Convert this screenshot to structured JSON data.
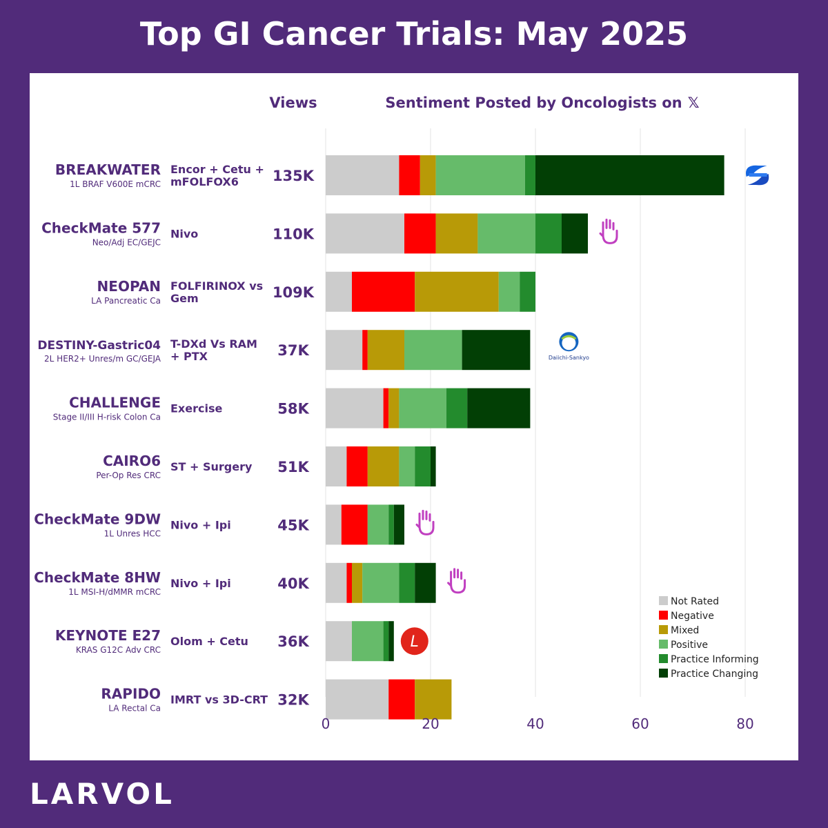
{
  "title": "Top GI Cancer Trials: May 2025",
  "brand": "LARVOL",
  "colors": {
    "background": "#512b7a",
    "text_accent": "#512b7a",
    "Not Rated": "#cccccc",
    "Negative": "#ff0000",
    "Mixed": "#b89a07",
    "Positive": "#66bb6a",
    "Practice Informing": "#238b2d",
    "Practice Changing": "#023f05"
  },
  "headers": {
    "views": "Views",
    "sentiment": "Sentiment Posted by Oncologists on",
    "platform_glyph": "𝕏"
  },
  "chart_data": {
    "type": "bar",
    "orientation": "horizontal",
    "stacked": true,
    "xlim": [
      0,
      80
    ],
    "xticks": [
      "0",
      "20",
      "40",
      "60",
      "80"
    ],
    "grid": true,
    "legend_position": "bottom-right",
    "categories": [
      "BREAKWATER",
      "CheckMate 577",
      "NEOPAN",
      "DESTINY-Gastric04",
      "CHALLENGE",
      "CAIRO6",
      "CheckMate 9DW",
      "CheckMate 8HW",
      "KEYNOTE E27",
      "RAPIDO"
    ],
    "subtitles": [
      "1L BRAF V600E mCRC",
      "Neo/Adj EC/GEJC",
      "LA Pancreatic Ca",
      "2L HER2+ Unres/m GC/GEJA",
      "Stage II/III H-risk Colon Ca",
      "Per-Op Res CRC",
      "1L Unres HCC",
      "1L MSI-H/dMMR mCRC",
      "KRAS G12C Adv CRC",
      "LA Rectal Ca"
    ],
    "treatments": [
      [
        "Encor + Cetu +",
        "mFOLFOX6"
      ],
      [
        "Nivo"
      ],
      [
        "FOLFIRINOX vs",
        "Gem"
      ],
      [
        "T-DXd Vs RAM",
        "+ PTX"
      ],
      [
        "Exercise"
      ],
      [
        "ST + Surgery"
      ],
      [
        "Nivo + Ipi"
      ],
      [
        "Nivo + Ipi"
      ],
      [
        "Olom + Cetu"
      ],
      [
        "IMRT vs 3D-CRT"
      ]
    ],
    "views": [
      "135K",
      "110K",
      "109K",
      "37K",
      "58K",
      "51K",
      "45K",
      "40K",
      "36K",
      "32K"
    ],
    "sponsor_icons": [
      "larger-logo-icon",
      "raised-hand-icon",
      "",
      "daiichi-sankyo-logo-icon",
      "",
      "",
      "raised-hand-icon",
      "raised-hand-icon",
      "lilly-logo-icon",
      ""
    ],
    "sponsor_label_daiichi": "Daiichi-Sankyo",
    "sponsor_label_lilly": "L",
    "series": [
      {
        "name": "Not Rated",
        "values": [
          14,
          15,
          5,
          7,
          11,
          4,
          3,
          4,
          5,
          12
        ]
      },
      {
        "name": "Negative",
        "values": [
          4,
          6,
          12,
          1,
          1,
          4,
          5,
          1,
          0,
          5
        ]
      },
      {
        "name": "Mixed",
        "values": [
          3,
          8,
          16,
          7,
          2,
          6,
          0,
          2,
          0,
          7
        ]
      },
      {
        "name": "Positive",
        "values": [
          17,
          11,
          4,
          11,
          9,
          3,
          4,
          7,
          6,
          0
        ]
      },
      {
        "name": "Practice Informing",
        "values": [
          2,
          5,
          3,
          0,
          4,
          3,
          1,
          3,
          1,
          0
        ]
      },
      {
        "name": "Practice Changing",
        "values": [
          36,
          5,
          0,
          13,
          12,
          1,
          2,
          4,
          1,
          0
        ]
      }
    ]
  }
}
